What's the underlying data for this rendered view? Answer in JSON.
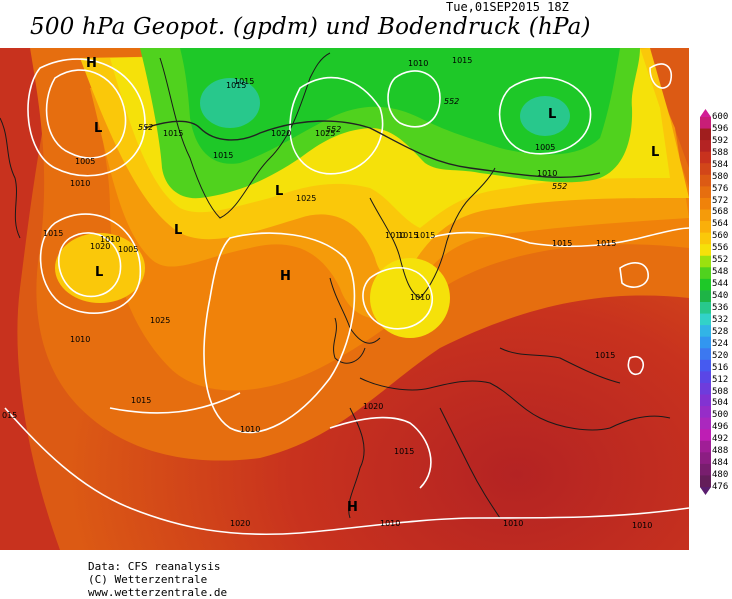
{
  "header": {
    "title": "500 hPa Geopot. (gpdm) und Bodendruck (hPa)",
    "timestamp": "Tue,01SEP2015 18Z"
  },
  "colorbar": {
    "labels": [
      "600",
      "596",
      "592",
      "588",
      "584",
      "580",
      "576",
      "572",
      "568",
      "564",
      "560",
      "556",
      "552",
      "548",
      "544",
      "540",
      "536",
      "532",
      "528",
      "524",
      "520",
      "516",
      "512",
      "508",
      "504",
      "500",
      "496",
      "492",
      "488",
      "484",
      "480",
      "476"
    ],
    "colors": [
      "#c81e78",
      "#a01e1e",
      "#b42323",
      "#c8321e",
      "#d24619",
      "#dc5a14",
      "#e66e0f",
      "#f0820a",
      "#f59b0a",
      "#faaf0a",
      "#fac80a",
      "#f5e10a",
      "#9be10f",
      "#50d21e",
      "#1ec828",
      "#1eb446",
      "#28c88c",
      "#32d2c8",
      "#32b4e6",
      "#3296f0",
      "#3c78f0",
      "#465af0",
      "#5a46e6",
      "#6e3cdc",
      "#8232d2",
      "#962dc8",
      "#aa28be",
      "#be1eb4",
      "#a01e96",
      "#8c1e82",
      "#781e6e",
      "#641e5a"
    ],
    "arrow_top_color": "#d21e96",
    "arrow_bottom_color": "#5a1e6e"
  },
  "map": {
    "isobar_labels": [
      "1005",
      "1010",
      "1015",
      "1020",
      "1025",
      "1010",
      "1005",
      "1010",
      "1015",
      "1005",
      "1010",
      "1015",
      "1015",
      "1015",
      "1010",
      "1020",
      "1025",
      "1015",
      "1010",
      "1015",
      "1020",
      "1025",
      "1015",
      "1015",
      "1015",
      "1010",
      "1010",
      "1010",
      "1010",
      "1015",
      "1010",
      "015",
      "1020",
      "1015",
      "1015"
    ],
    "geopot_labels": [
      "552",
      "552",
      "552",
      "552"
    ],
    "centers": [
      "H",
      "L",
      "L",
      "L",
      "L",
      "H",
      "L",
      "L",
      "H"
    ]
  },
  "footer": {
    "line1": "Data: CFS reanalysis",
    "line2": "(C) Wetterzentrale",
    "line3": "www.wetterzentrale.de"
  }
}
